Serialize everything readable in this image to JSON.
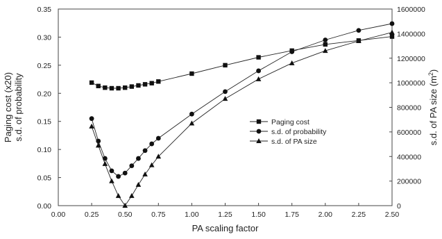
{
  "chart_data": {
    "type": "line",
    "xlabel": "PA scaling factor",
    "ylabel_left_line1": "Paging cost (x20)",
    "ylabel_left_line2": "s.d. of probability",
    "ylabel_right": "s.d. of PA size (m²)",
    "xlim": [
      0.0,
      2.5
    ],
    "ylim_left": [
      0.0,
      0.35
    ],
    "ylim_right": [
      0,
      1600000
    ],
    "x_ticks": [
      "0.00",
      "0.25",
      "0.50",
      "0.75",
      "1.00",
      "1.25",
      "1.50",
      "1.75",
      "2.00",
      "2.25",
      "2.50"
    ],
    "y_left_ticks": [
      "0.00",
      "0.05",
      "0.10",
      "0.15",
      "0.20",
      "0.25",
      "0.30",
      "0.35"
    ],
    "y_right_ticks": [
      "0",
      "200000",
      "400000",
      "600000",
      "800000",
      "1000000",
      "1200000",
      "1400000",
      "1600000"
    ],
    "grid": false,
    "legend_position": "center-right",
    "series": [
      {
        "name": "Paging cost",
        "axis": "left",
        "marker": "square",
        "x": [
          0.25,
          0.3,
          0.35,
          0.4,
          0.45,
          0.5,
          0.55,
          0.6,
          0.65,
          0.7,
          0.75,
          1.0,
          1.25,
          1.5,
          1.75,
          2.0,
          2.25,
          2.5
        ],
        "y": [
          0.219,
          0.213,
          0.21,
          0.209,
          0.209,
          0.21,
          0.212,
          0.214,
          0.216,
          0.218,
          0.221,
          0.235,
          0.25,
          0.264,
          0.276,
          0.287,
          0.294,
          0.301
        ]
      },
      {
        "name": "s.d. of probability",
        "axis": "left",
        "marker": "circle",
        "x": [
          0.25,
          0.3,
          0.35,
          0.4,
          0.45,
          0.5,
          0.55,
          0.6,
          0.65,
          0.7,
          0.75,
          1.0,
          1.25,
          1.5,
          1.75,
          2.0,
          2.25,
          2.5
        ],
        "y": [
          0.155,
          0.115,
          0.084,
          0.062,
          0.052,
          0.058,
          0.071,
          0.084,
          0.098,
          0.11,
          0.12,
          0.163,
          0.203,
          0.24,
          0.274,
          0.295,
          0.312,
          0.324
        ]
      },
      {
        "name": "s.d. of PA size",
        "axis": "right",
        "marker": "triangle",
        "x": [
          0.25,
          0.3,
          0.35,
          0.4,
          0.45,
          0.5,
          0.55,
          0.6,
          0.65,
          0.7,
          0.75,
          1.0,
          1.25,
          1.5,
          1.75,
          2.0,
          2.25,
          2.5
        ],
        "y": [
          645000,
          490000,
          340000,
          200000,
          80000,
          0,
          80000,
          170000,
          255000,
          330000,
          400000,
          670000,
          870000,
          1030000,
          1160000,
          1260000,
          1340000,
          1410000
        ]
      }
    ]
  }
}
